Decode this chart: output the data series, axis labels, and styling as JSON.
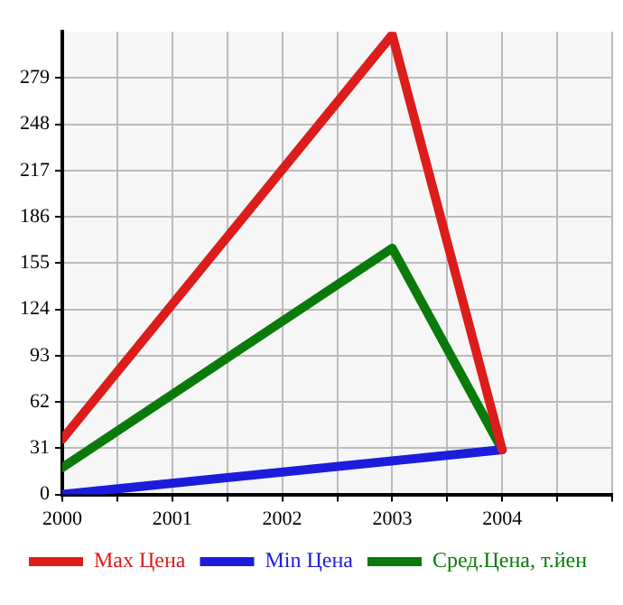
{
  "chart_data": {
    "type": "line",
    "xlim": [
      2000,
      2005
    ],
    "ylim": [
      0,
      310
    ],
    "xticks": [
      2000,
      {
        "value": 2000.5,
        "label": null
      },
      2001,
      {
        "value": 2001.5,
        "label": null
      },
      2002,
      {
        "value": 2002.5,
        "label": null
      },
      2003,
      {
        "value": 2003.5,
        "label": null
      },
      2004,
      {
        "value": 2004.5,
        "label": null
      },
      {
        "value": 2005,
        "label": null
      }
    ],
    "yticks": [
      0,
      31,
      62,
      93,
      124,
      155,
      186,
      217,
      248,
      279
    ],
    "grid": true,
    "legend": "bottom",
    "marker": "none",
    "line_style": "solid",
    "series": [
      {
        "name": "Max Цена",
        "color": "#dd1c1c",
        "x": [
          2000,
          2003,
          2004
        ],
        "values": [
          37,
          308,
          30
        ]
      },
      {
        "name": "Min Цена",
        "color": "#1c1cdd",
        "x": [
          2000,
          2004
        ],
        "values": [
          0,
          30
        ]
      },
      {
        "name": "Сред.Цена, т.йен",
        "color": "#0a7a0a",
        "x": [
          2000,
          2003,
          2004
        ],
        "values": [
          18,
          165,
          30
        ]
      }
    ]
  }
}
